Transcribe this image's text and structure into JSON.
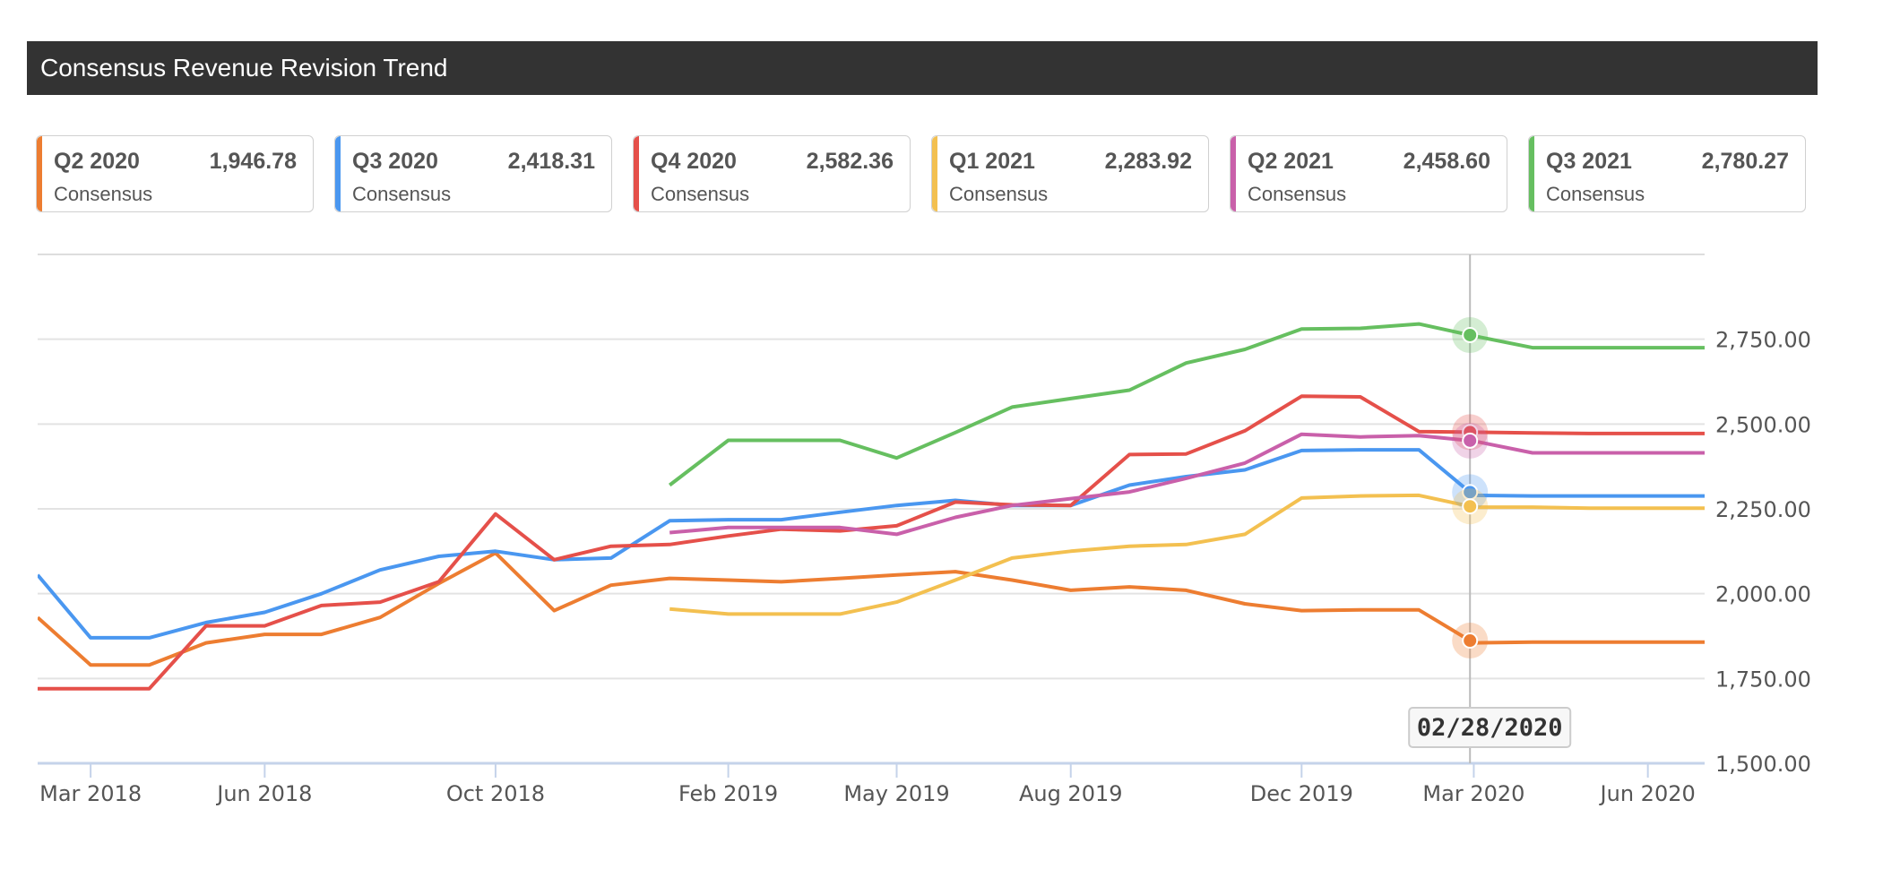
{
  "header": {
    "title": "Consensus Revenue Revision Trend"
  },
  "cards": [
    {
      "quarter": "Q2 2020",
      "value": "1,946.78",
      "sub": "Consensus",
      "color": "#ED7D31"
    },
    {
      "quarter": "Q3 2020",
      "value": "2,418.31",
      "sub": "Consensus",
      "color": "#4A97F0"
    },
    {
      "quarter": "Q4 2020",
      "value": "2,582.36",
      "sub": "Consensus",
      "color": "#E5504A"
    },
    {
      "quarter": "Q1 2021",
      "value": "2,283.92",
      "sub": "Consensus",
      "color": "#F3C050"
    },
    {
      "quarter": "Q2 2021",
      "value": "2,458.60",
      "sub": "Consensus",
      "color": "#C960AA"
    },
    {
      "quarter": "Q3 2021",
      "value": "2,780.27",
      "sub": "Consensus",
      "color": "#66BF60"
    }
  ],
  "chart_data": {
    "type": "line",
    "title": "",
    "xlabel": "",
    "ylabel": "",
    "x_tick_labels": [
      "Mar 2018",
      "Jun 2018",
      "Oct 2018",
      "Feb 2019",
      "May 2019",
      "Aug 2019",
      "Dec 2019",
      "Mar 2020",
      "Jun 2020"
    ],
    "y_tick_labels": [
      "1,500.00",
      "1,750.00",
      "2,000.00",
      "2,250.00",
      "2,500.00",
      "2,750.00"
    ],
    "y_ticks": [
      1500,
      1750,
      2000,
      2250,
      2500,
      2750
    ],
    "ylim": [
      1500,
      3000
    ],
    "xlim": [
      "2018-02-01",
      "2020-07-01"
    ],
    "grid": true,
    "crosshair": {
      "date": "2020-02-28",
      "label": "02/28/2020"
    },
    "series": [
      {
        "name": "Q2 2020",
        "color": "#ED7D31",
        "x": [
          "2018-02-01",
          "2018-03-01",
          "2018-04-01",
          "2018-05-01",
          "2018-06-01",
          "2018-07-01",
          "2018-08-01",
          "2018-09-01",
          "2018-10-01",
          "2018-11-01",
          "2018-12-01",
          "2019-01-01",
          "2019-02-01",
          "2019-03-01",
          "2019-04-01",
          "2019-05-01",
          "2019-06-01",
          "2019-07-01",
          "2019-08-01",
          "2019-09-01",
          "2019-10-01",
          "2019-11-01",
          "2019-12-01",
          "2020-01-01",
          "2020-02-01",
          "2020-03-01",
          "2020-04-01",
          "2020-05-01",
          "2020-06-01",
          "2020-07-01"
        ],
        "values": [
          1930,
          1790,
          1790,
          1855,
          1880,
          1880,
          1930,
          2030,
          2120,
          1950,
          2025,
          2045,
          2040,
          2035,
          2045,
          2055,
          2065,
          2040,
          2010,
          2020,
          2010,
          1970,
          1950,
          1952,
          1952,
          1855,
          1857,
          1857,
          1857,
          1857
        ]
      },
      {
        "name": "Q3 2020",
        "color": "#4A97F0",
        "x": [
          "2018-02-01",
          "2018-03-01",
          "2018-04-01",
          "2018-05-01",
          "2018-06-01",
          "2018-07-01",
          "2018-08-01",
          "2018-09-01",
          "2018-10-01",
          "2018-11-01",
          "2018-12-01",
          "2019-01-01",
          "2019-02-01",
          "2019-03-01",
          "2019-04-01",
          "2019-05-01",
          "2019-06-01",
          "2019-07-01",
          "2019-08-01",
          "2019-09-01",
          "2019-10-01",
          "2019-11-01",
          "2019-12-01",
          "2020-01-01",
          "2020-02-01",
          "2020-03-01",
          "2020-04-01",
          "2020-05-01",
          "2020-06-01",
          "2020-07-01"
        ],
        "values": [
          2055,
          1870,
          1870,
          1915,
          1945,
          2000,
          2070,
          2110,
          2125,
          2100,
          2105,
          2215,
          2218,
          2218,
          2240,
          2260,
          2275,
          2260,
          2260,
          2320,
          2345,
          2365,
          2422,
          2424,
          2424,
          2290,
          2288,
          2288,
          2288,
          2288
        ]
      },
      {
        "name": "Q4 2020",
        "color": "#E5504A",
        "x": [
          "2018-02-01",
          "2018-03-01",
          "2018-04-01",
          "2018-05-01",
          "2018-06-01",
          "2018-07-01",
          "2018-08-01",
          "2018-09-01",
          "2018-10-01",
          "2018-11-01",
          "2018-12-01",
          "2019-01-01",
          "2019-02-01",
          "2019-03-01",
          "2019-04-01",
          "2019-05-01",
          "2019-06-01",
          "2019-07-01",
          "2019-08-01",
          "2019-09-01",
          "2019-10-01",
          "2019-11-01",
          "2019-12-01",
          "2020-01-01",
          "2020-02-01",
          "2020-03-01",
          "2020-04-01",
          "2020-05-01",
          "2020-06-01",
          "2020-07-01"
        ],
        "values": [
          1720,
          1720,
          1720,
          1905,
          1905,
          1965,
          1975,
          2035,
          2235,
          2100,
          2140,
          2145,
          2170,
          2190,
          2185,
          2200,
          2270,
          2262,
          2260,
          2410,
          2412,
          2480,
          2582,
          2580,
          2478,
          2476,
          2474,
          2472,
          2472,
          2472
        ]
      },
      {
        "name": "Q1 2021",
        "color": "#F3C050",
        "x": [
          "2019-01-01",
          "2019-02-01",
          "2019-03-01",
          "2019-04-01",
          "2019-05-01",
          "2019-06-01",
          "2019-07-01",
          "2019-08-01",
          "2019-09-01",
          "2019-10-01",
          "2019-11-01",
          "2019-12-01",
          "2020-01-01",
          "2020-02-01",
          "2020-03-01",
          "2020-04-01",
          "2020-05-01",
          "2020-06-01",
          "2020-07-01"
        ],
        "values": [
          1955,
          1940,
          1940,
          1940,
          1975,
          2040,
          2105,
          2125,
          2140,
          2145,
          2175,
          2282,
          2288,
          2290,
          2255,
          2255,
          2252,
          2252,
          2252
        ]
      },
      {
        "name": "Q2 2021",
        "color": "#C960AA",
        "x": [
          "2019-01-01",
          "2019-02-01",
          "2019-03-01",
          "2019-04-01",
          "2019-05-01",
          "2019-06-01",
          "2019-07-01",
          "2019-08-01",
          "2019-09-01",
          "2019-10-01",
          "2019-11-01",
          "2019-12-01",
          "2020-01-01",
          "2020-02-01",
          "2020-03-01",
          "2020-04-01",
          "2020-05-01",
          "2020-06-01",
          "2020-07-01"
        ],
        "values": [
          2180,
          2195,
          2195,
          2195,
          2175,
          2225,
          2260,
          2280,
          2300,
          2340,
          2385,
          2470,
          2462,
          2466,
          2450,
          2415,
          2415,
          2415,
          2415
        ]
      },
      {
        "name": "Q3 2021",
        "color": "#66BF60",
        "x": [
          "2019-01-01",
          "2019-02-01",
          "2019-03-01",
          "2019-04-01",
          "2019-05-01",
          "2019-06-01",
          "2019-07-01",
          "2019-08-01",
          "2019-09-01",
          "2019-10-01",
          "2019-11-01",
          "2019-12-01",
          "2020-01-01",
          "2020-02-01",
          "2020-03-01",
          "2020-04-01",
          "2020-05-01",
          "2020-06-01",
          "2020-07-01"
        ],
        "values": [
          2320,
          2452,
          2452,
          2452,
          2400,
          2475,
          2550,
          2575,
          2600,
          2680,
          2720,
          2780,
          2782,
          2795,
          2760,
          2725,
          2725,
          2725,
          2725
        ]
      }
    ]
  }
}
